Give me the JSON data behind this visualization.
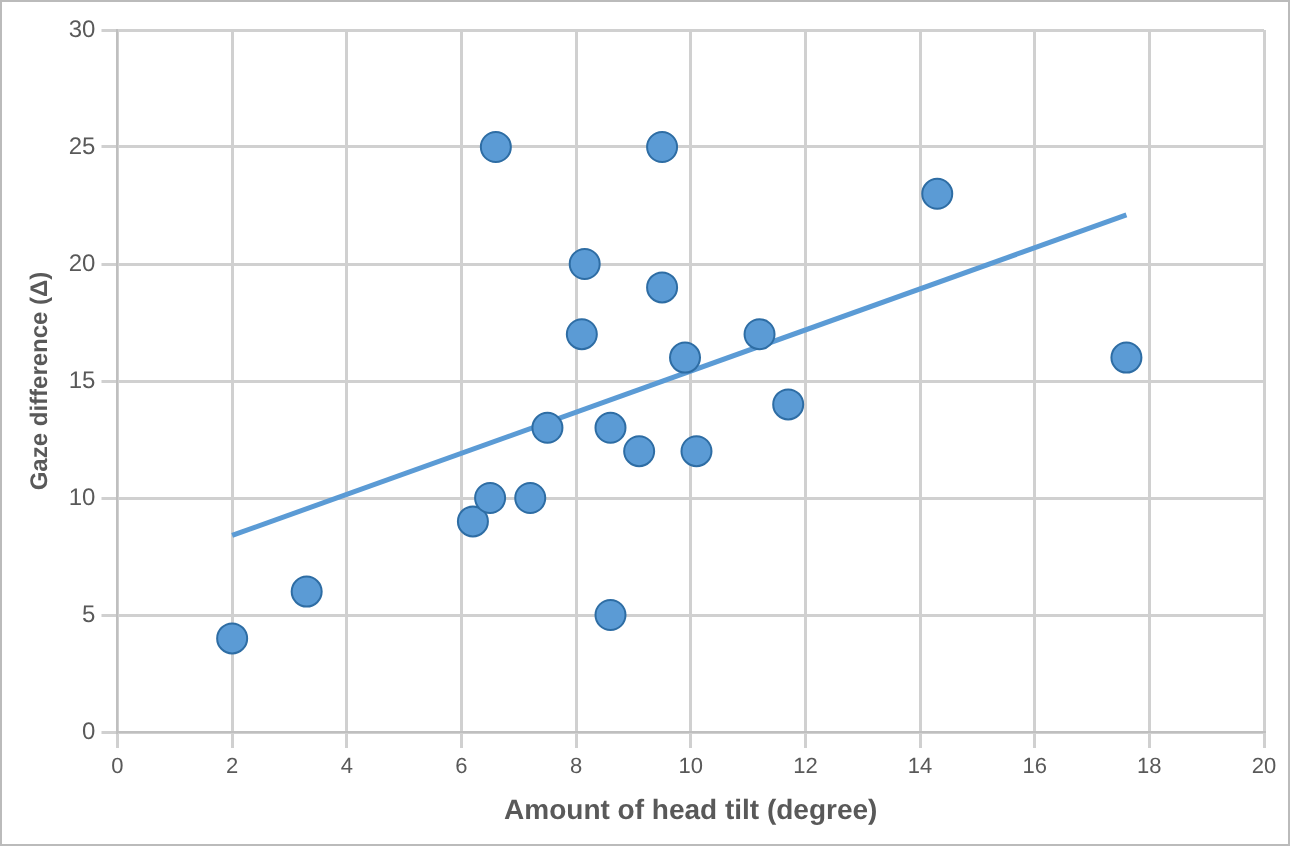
{
  "chart_data": {
    "type": "scatter",
    "xlabel": "Amount of head tilt (degree)",
    "ylabel": "Gaze difference (Δ)",
    "xlim": [
      0,
      20
    ],
    "xticks": [
      0,
      2,
      4,
      6,
      8,
      10,
      12,
      14,
      16,
      18,
      20
    ],
    "ylim": [
      0,
      30
    ],
    "yticks": [
      0,
      5,
      10,
      15,
      20,
      25,
      30
    ],
    "grid": true,
    "legend": false,
    "marker": "circle",
    "series": [
      {
        "type": "scatter",
        "color": "#5b9bd5",
        "x": [
          2,
          3.3,
          6.6,
          6.2,
          6.5,
          7.2,
          7.5,
          8.1,
          8.15,
          8.6,
          8.6,
          9.1,
          9.5,
          9.5,
          9.9,
          10.1,
          11.2,
          11.7,
          14.3,
          17.6
        ],
        "values": [
          4,
          6,
          25,
          9,
          10,
          10,
          13,
          17,
          20,
          13,
          5,
          12,
          19,
          25,
          16,
          12,
          17,
          14,
          23,
          16
        ]
      },
      {
        "type": "line",
        "marker": "none",
        "color": "#5b9bd5",
        "x": [
          2,
          17.6
        ],
        "values": [
          8.4,
          22.1
        ]
      }
    ]
  }
}
